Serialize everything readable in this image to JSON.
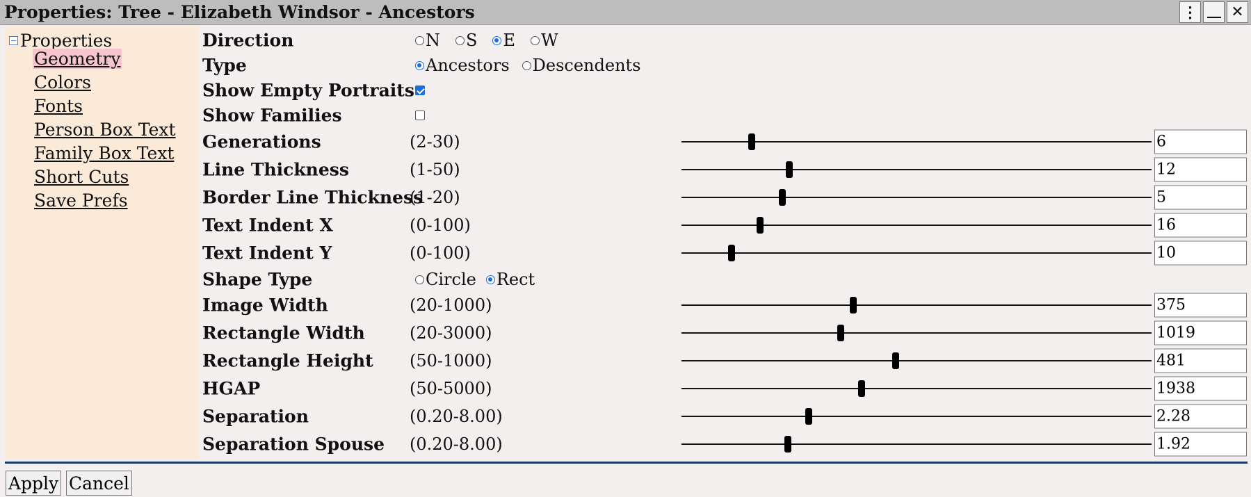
{
  "window": {
    "title": "Properties: Tree - Elizabeth Windsor - Ancestors",
    "buttons": {
      "menu": "⋮",
      "minimize": "_",
      "close": "✕"
    }
  },
  "sidebar": {
    "root_label": "Properties",
    "items": [
      {
        "label": "Geometry",
        "active": true
      },
      {
        "label": "Colors"
      },
      {
        "label": "Fonts"
      },
      {
        "label": "Person Box Text"
      },
      {
        "label": "Family Box Text"
      },
      {
        "label": "Short Cuts"
      },
      {
        "label": "Save Prefs"
      }
    ]
  },
  "form": {
    "direction": {
      "label": "Direction",
      "options": [
        "N",
        "S",
        "E",
        "W"
      ],
      "selected": "E"
    },
    "type": {
      "label": "Type",
      "options": [
        "Ancestors",
        "Descendents"
      ],
      "selected": "Ancestors"
    },
    "show_empty_portraits": {
      "label": "Show Empty Portraits",
      "checked": true
    },
    "show_families": {
      "label": "Show Families",
      "checked": false
    },
    "shape_type": {
      "label": "Shape Type",
      "options": [
        "Circle",
        "Rect"
      ],
      "selected": "Rect"
    },
    "sliders": [
      {
        "label": "Generations",
        "range": "(2-30)",
        "value": "6",
        "fraction": 0.15
      },
      {
        "label": "Line Thickness",
        "range": "(1-50)",
        "value": "12",
        "fraction": 0.23
      },
      {
        "label": "Border Line Thickness",
        "range": "(1-20)",
        "value": "5",
        "fraction": 0.215
      },
      {
        "label": "Text Indent X",
        "range": "(0-100)",
        "value": "16",
        "fraction": 0.167
      },
      {
        "label": "Text Indent Y",
        "range": "(0-100)",
        "value": "10",
        "fraction": 0.107
      },
      {
        "label": "Image Width",
        "range": "(20-1000)",
        "value": "375",
        "fraction": 0.366
      },
      {
        "label": "Rectangle Width",
        "range": "(20-3000)",
        "value": "1019",
        "fraction": 0.339
      },
      {
        "label": "Rectangle Height",
        "range": "(50-1000)",
        "value": "481",
        "fraction": 0.455
      },
      {
        "label": "HGAP",
        "range": "(50-5000)",
        "value": "1938",
        "fraction": 0.383
      },
      {
        "label": "Separation",
        "range": "(0.20-8.00)",
        "value": "2.28",
        "fraction": 0.271
      },
      {
        "label": "Separation Spouse",
        "range": "(0.20-8.00)",
        "value": "1.92",
        "fraction": 0.226
      }
    ]
  },
  "footer": {
    "apply_label": "Apply",
    "cancel_label": "Cancel"
  }
}
